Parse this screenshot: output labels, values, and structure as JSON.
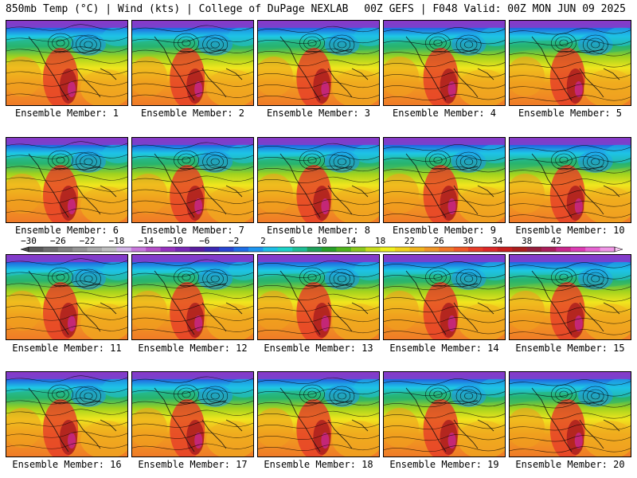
{
  "header": {
    "left": "850mb Temp (°C) | Wind (kts) | College of DuPage NEXLAB",
    "right": "00Z GEFS | F048 Valid: 00Z MON JUN 09 2025"
  },
  "member_prefix": "Ensemble Member: ",
  "members": [
    {
      "label": "Ensemble Member: 1"
    },
    {
      "label": "Ensemble Member: 2"
    },
    {
      "label": "Ensemble Member: 3"
    },
    {
      "label": "Ensemble Member: 4"
    },
    {
      "label": "Ensemble Member: 5"
    },
    {
      "label": "Ensemble Member: 6"
    },
    {
      "label": "Ensemble Member: 7"
    },
    {
      "label": "Ensemble Member: 8"
    },
    {
      "label": "Ensemble Member: 9"
    },
    {
      "label": "Ensemble Member: 10"
    },
    {
      "label": "Ensemble Member: 11"
    },
    {
      "label": "Ensemble Member: 12"
    },
    {
      "label": "Ensemble Member: 13"
    },
    {
      "label": "Ensemble Member: 14"
    },
    {
      "label": "Ensemble Member: 15"
    },
    {
      "label": "Ensemble Member: 16"
    },
    {
      "label": "Ensemble Member: 17"
    },
    {
      "label": "Ensemble Member: 18"
    },
    {
      "label": "Ensemble Member: 19"
    },
    {
      "label": "Ensemble Member: 20"
    }
  ],
  "colorbar": {
    "tick_labels": [
      "−30",
      "−26",
      "−22",
      "−18",
      "−14",
      "−10",
      "−6",
      "−2",
      "2",
      "6",
      "10",
      "14",
      "18",
      "22",
      "26",
      "30",
      "34",
      "38",
      "42"
    ],
    "colors": [
      "#5a5a5a",
      "#6e6e6e",
      "#828282",
      "#969696",
      "#aaaaaa",
      "#bebebe",
      "#d2b4e6",
      "#c878dc",
      "#b450c8",
      "#9632be",
      "#7828b4",
      "#5a1ea0",
      "#3c28b4",
      "#2846d2",
      "#1e6ee6",
      "#1e96f0",
      "#1ebee6",
      "#1ed2c8",
      "#1ebe96",
      "#1ea05a",
      "#28a028",
      "#50b41e",
      "#8cc81e",
      "#c8dc1e",
      "#f0f01e",
      "#f0d21e",
      "#f0b41e",
      "#f09628",
      "#f07828",
      "#f05a28",
      "#e63c28",
      "#dc2828",
      "#c81e1e",
      "#aa1e1e",
      "#961e3c",
      "#aa1e5a",
      "#c8288c",
      "#dc3cb4",
      "#e664d2",
      "#f096e6"
    ]
  }
}
